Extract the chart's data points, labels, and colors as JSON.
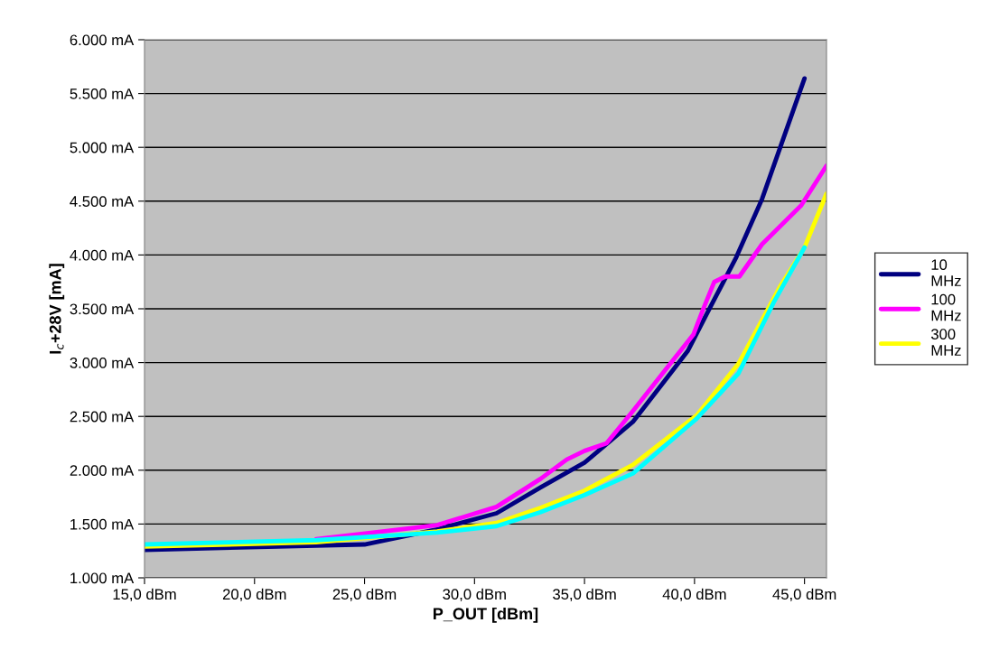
{
  "chart_data": {
    "type": "line",
    "xlabel": "P_OUT [dBm]",
    "ylabel": "I$_{c}$+28V [mA]",
    "xlim": [
      15,
      46
    ],
    "ylim": [
      1000,
      6000
    ],
    "xticks": [
      {
        "value": 15,
        "label": "15,0 dBm"
      },
      {
        "value": 20,
        "label": "20,0 dBm"
      },
      {
        "value": 25,
        "label": "25,0 dBm"
      },
      {
        "value": 30,
        "label": "30,0 dBm"
      },
      {
        "value": 35,
        "label": "35,0 dBm"
      },
      {
        "value": 40,
        "label": "40,0 dBm"
      },
      {
        "value": 45,
        "label": "45,0 dBm"
      }
    ],
    "yticks": [
      {
        "value": 1000,
        "label": "1.000 mA"
      },
      {
        "value": 1500,
        "label": "1.500 mA"
      },
      {
        "value": 2000,
        "label": "2.000 mA"
      },
      {
        "value": 2500,
        "label": "2.500 mA"
      },
      {
        "value": 3000,
        "label": "3.000 mA"
      },
      {
        "value": 3500,
        "label": "3.500 mA"
      },
      {
        "value": 4000,
        "label": "4.000 mA"
      },
      {
        "value": 4500,
        "label": "4.500 mA"
      },
      {
        "value": 5000,
        "label": "5.000 mA"
      },
      {
        "value": 5500,
        "label": "5.500 mA"
      },
      {
        "value": 6000,
        "label": "6.000 mA"
      }
    ],
    "grid": "y",
    "legend": "right",
    "marker": "none",
    "line_style": "solid",
    "series": [
      {
        "name": "10 MHz",
        "color": "#000080",
        "x": [
          15,
          22.8,
          25,
          28.3,
          31,
          33,
          35,
          37.2,
          39.7,
          40.6,
          41.9,
          43.07,
          45
        ],
        "values": [
          1260,
          1300,
          1310,
          1450,
          1600,
          1840,
          2070,
          2450,
          3110,
          3470,
          3980,
          4520,
          5640
        ]
      },
      {
        "name": "100 MHz",
        "color": "#ff00ff",
        "x": [
          22.8,
          28.3,
          31,
          33,
          34.2,
          35,
          36,
          37.2,
          38.9,
          39.95,
          40.4,
          40.9,
          41.4,
          42.04,
          43.07,
          44.85,
          46
        ],
        "values": [
          1360,
          1490,
          1660,
          1920,
          2100,
          2180,
          2250,
          2550,
          2990,
          3260,
          3500,
          3750,
          3800,
          3800,
          4100,
          4460,
          4830
        ]
      },
      {
        "name": "300 MHz",
        "color": "#ffff00",
        "x": [
          15,
          22.8,
          28.3,
          31,
          33,
          35,
          37.2,
          40.1,
          42,
          43.9,
          45,
          46
        ],
        "values": [
          1290,
          1330,
          1430,
          1510,
          1650,
          1810,
          2050,
          2510,
          2990,
          3710,
          4070,
          4570
        ]
      },
      {
        "color": "#00ffff",
        "x": [
          15,
          22.8,
          28.3,
          31,
          33,
          35,
          37.2,
          40.1,
          42,
          43.6,
          45
        ],
        "values": [
          1310,
          1350,
          1420,
          1480,
          1610,
          1770,
          1970,
          2480,
          2900,
          3560,
          4070
        ]
      }
    ]
  }
}
